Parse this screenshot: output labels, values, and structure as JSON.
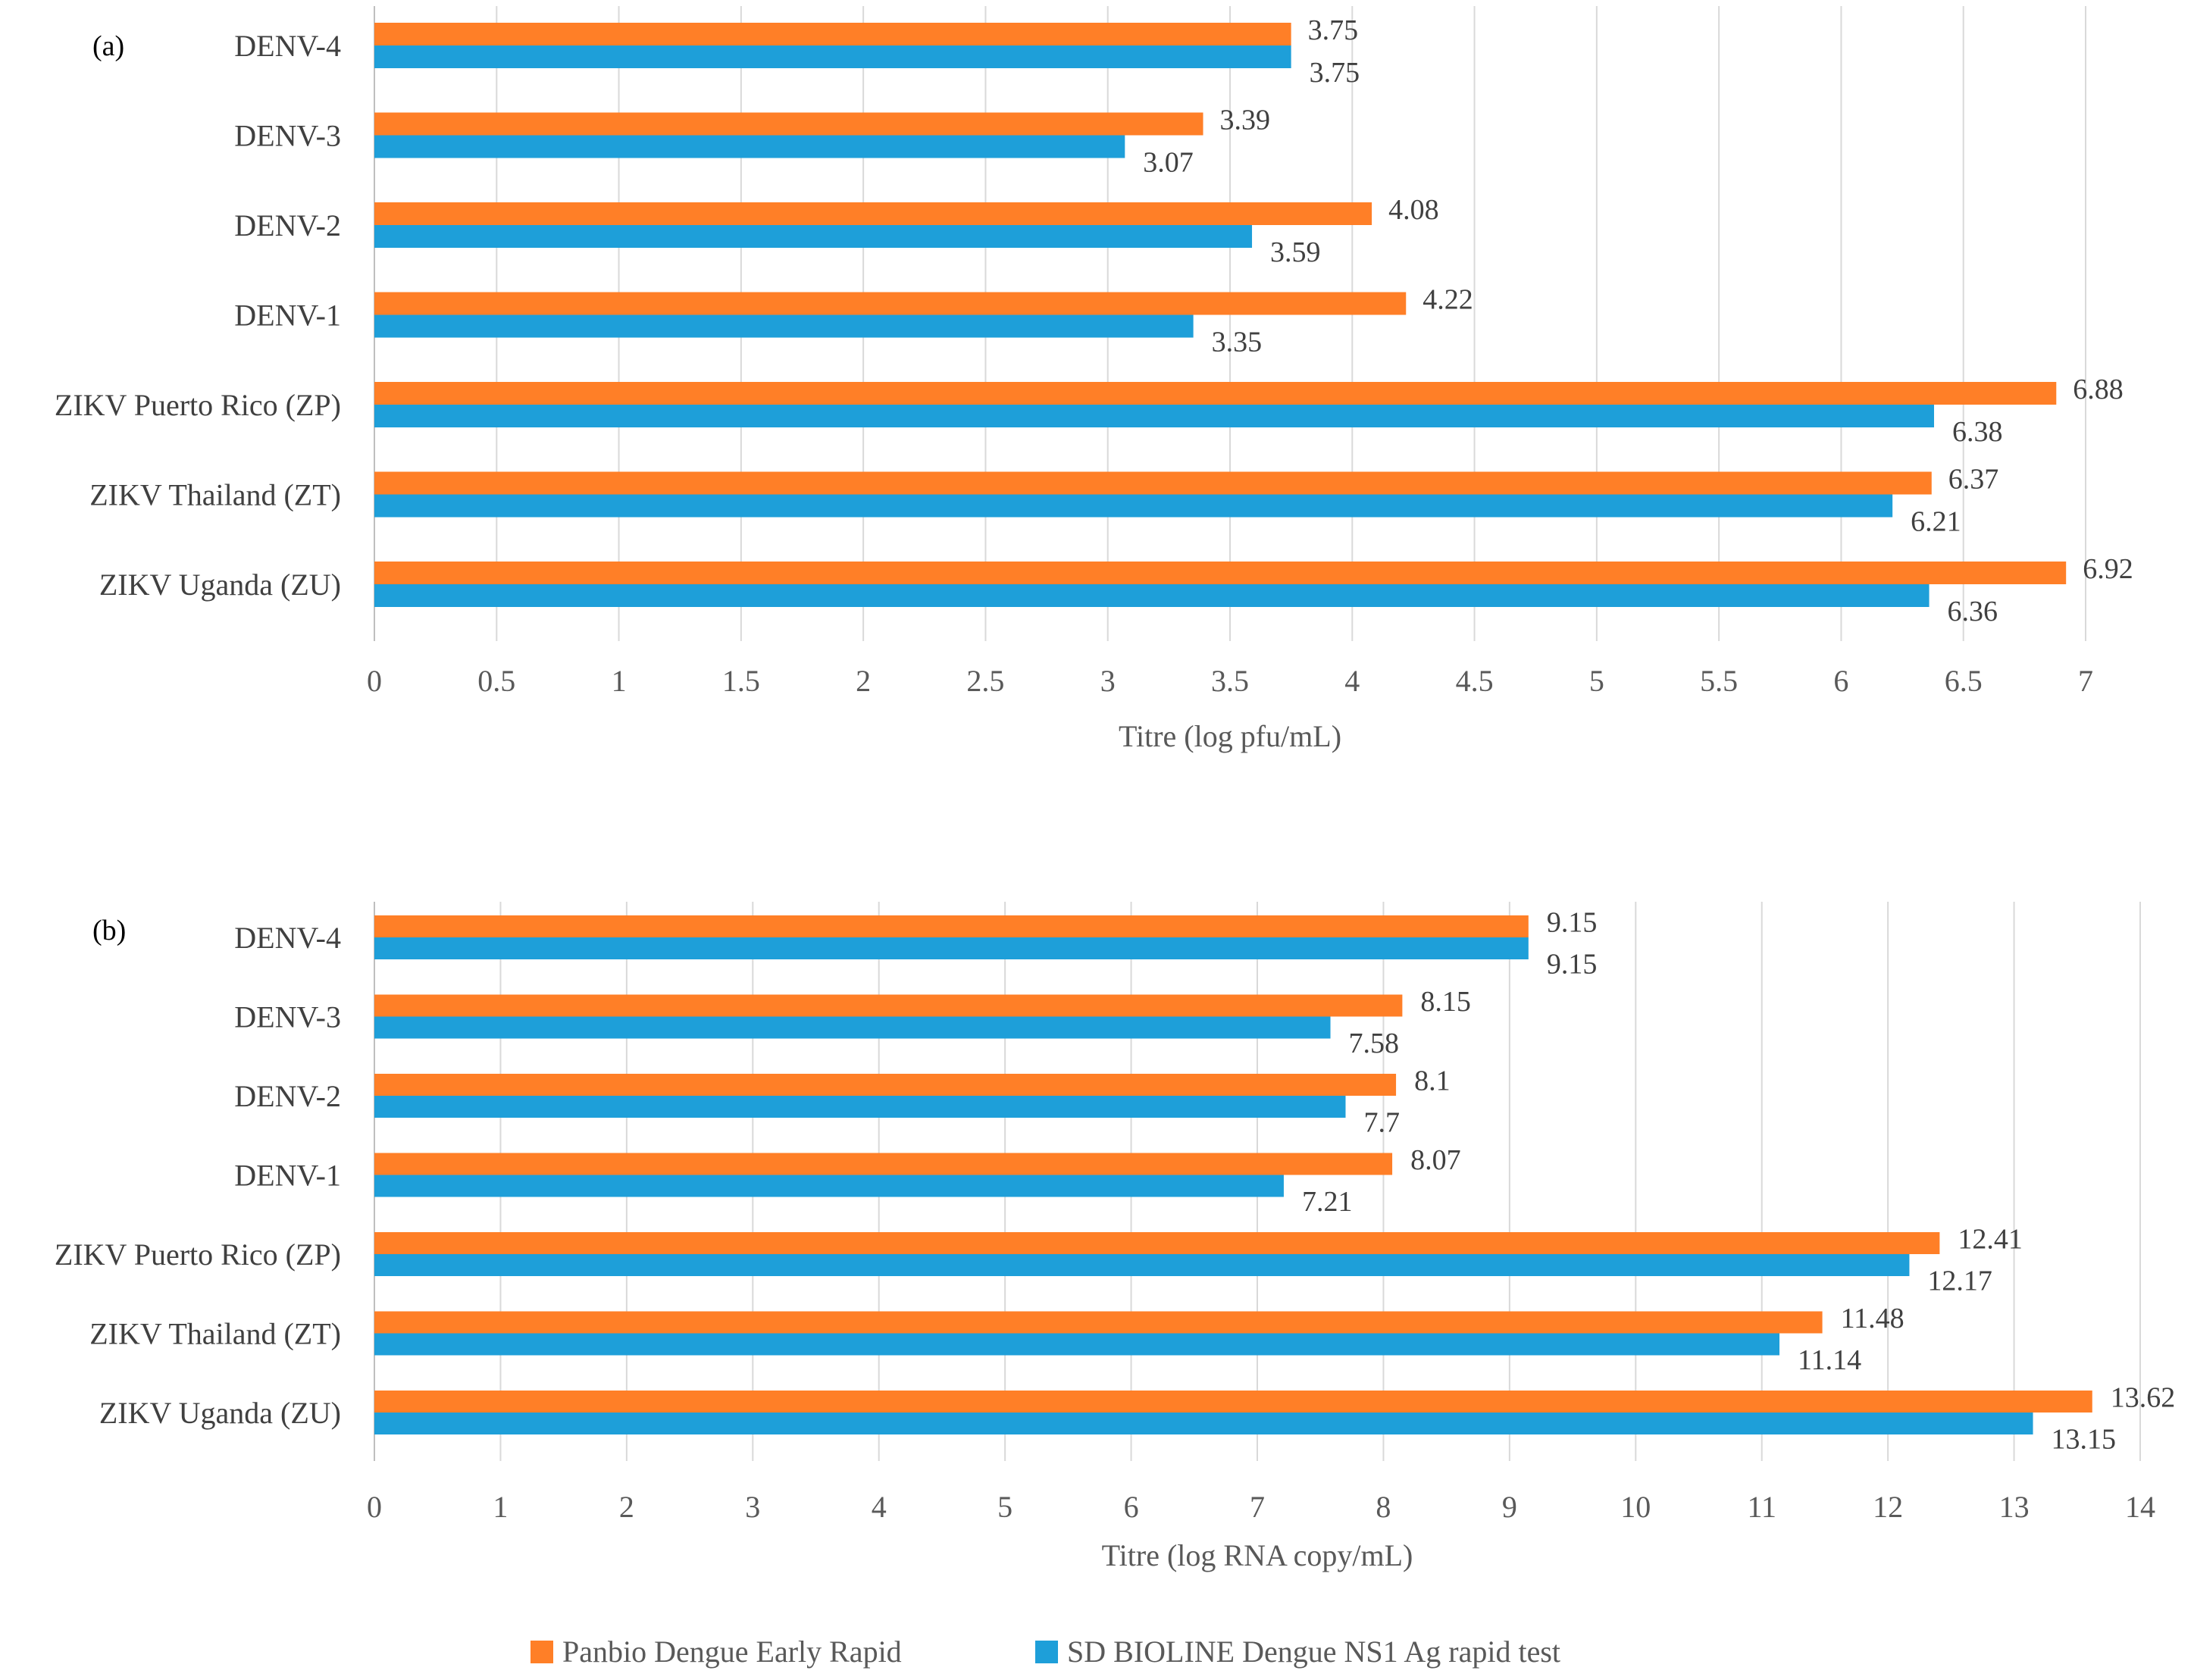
{
  "colors": {
    "panbio": "#FF7F27",
    "sd": "#1E9FD9",
    "grid": "#D9D9D9",
    "axis": "#BFBFBF"
  },
  "chart_data": [
    {
      "type": "bar",
      "orientation": "horizontal",
      "panel_label": "(a)",
      "title": "",
      "xlabel": "Titre (log  pfu/mL)",
      "ylabel": "",
      "xlim": [
        0,
        7
      ],
      "xticks": [
        "0",
        "0.5",
        "1",
        "1.5",
        "2",
        "2.5",
        "3",
        "3.5",
        "4",
        "4.5",
        "5",
        "5.5",
        "6",
        "6.5",
        "7"
      ],
      "xtick_values": [
        0,
        0.5,
        1,
        1.5,
        2,
        2.5,
        3,
        3.5,
        4,
        4.5,
        5,
        5.5,
        6,
        6.5,
        7
      ],
      "categories": [
        "DENV-4",
        "DENV-3",
        "DENV-2",
        "DENV-1",
        "ZIKV Puerto Rico (ZP)",
        "ZIKV Thailand (ZT)",
        "ZIKV Uganda (ZU)"
      ],
      "series": [
        {
          "name": "Panbio Dengue Early Rapid",
          "values": [
            3.75,
            3.39,
            4.08,
            4.22,
            6.88,
            6.37,
            6.92
          ],
          "labels": [
            "3.75",
            "3.39",
            "4.08",
            "4.22",
            "6.88",
            "6.37",
            "6.92"
          ]
        },
        {
          "name": "SD BIOLINE Dengue NS1 Ag rapid test",
          "values": [
            3.75,
            3.07,
            3.59,
            3.35,
            6.38,
            6.21,
            6.36
          ],
          "labels": [
            "3.75",
            "3.07",
            "3.59",
            "3.35",
            "6.38",
            "6.21",
            "6.36"
          ]
        }
      ],
      "grid": true
    },
    {
      "type": "bar",
      "orientation": "horizontal",
      "panel_label": "(b)",
      "title": "",
      "xlabel": "Titre (log RNA copy/mL)",
      "ylabel": "",
      "xlim": [
        0,
        14
      ],
      "xticks": [
        "0",
        "1",
        "2",
        "3",
        "4",
        "5",
        "6",
        "7",
        "8",
        "9",
        "10",
        "11",
        "12",
        "13",
        "14"
      ],
      "xtick_values": [
        0,
        1,
        2,
        3,
        4,
        5,
        6,
        7,
        8,
        9,
        10,
        11,
        12,
        13,
        14
      ],
      "categories": [
        "DENV-4",
        "DENV-3",
        "DENV-2",
        "DENV-1",
        "ZIKV Puerto Rico (ZP)",
        "ZIKV Thailand (ZT)",
        "ZIKV Uganda (ZU)"
      ],
      "series": [
        {
          "name": "Panbio Dengue Early Rapid",
          "values": [
            9.15,
            8.15,
            8.1,
            8.07,
            12.41,
            11.48,
            13.62
          ],
          "labels": [
            "9.15",
            "8.15",
            "8.1",
            "8.07",
            "12.41",
            "11.48",
            "13.62"
          ]
        },
        {
          "name": "SD BIOLINE Dengue NS1 Ag rapid test",
          "values": [
            9.15,
            7.58,
            7.7,
            7.21,
            12.17,
            11.14,
            13.15
          ],
          "labels": [
            "9.15",
            "7.58",
            "7.7",
            "7.21",
            "12.17",
            "11.14",
            "13.15"
          ]
        }
      ],
      "grid": true
    }
  ],
  "legend": {
    "position": "bottom-center",
    "items": [
      {
        "label": "Panbio Dengue Early Rapid",
        "color": "#FF7F27"
      },
      {
        "label": "SD BIOLINE Dengue NS1 Ag rapid test",
        "color": "#1E9FD9"
      }
    ]
  }
}
